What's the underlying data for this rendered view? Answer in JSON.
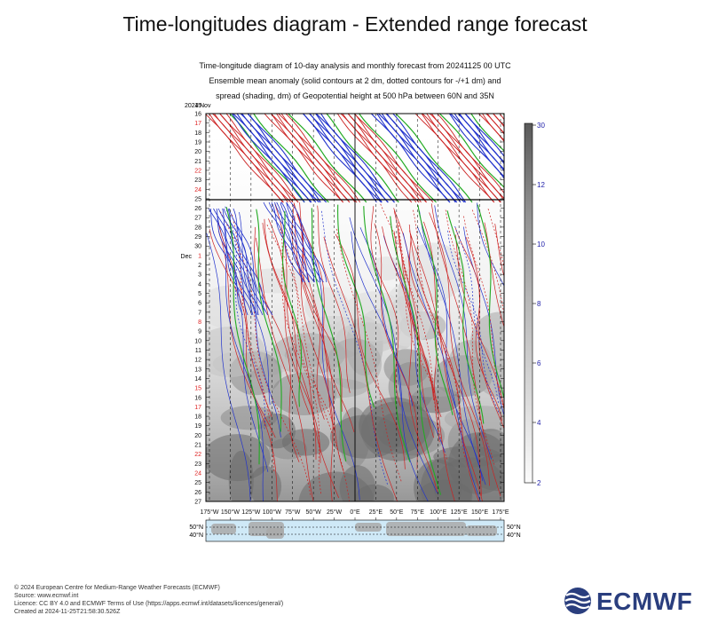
{
  "page": {
    "title": "Time-longitudes diagram - Extended range forecast"
  },
  "chart_data": {
    "type": "heatmap",
    "subtitle_lines": [
      "Time-longitude diagram of 10-day analysis and monthly forecast from 20241125 00 UTC",
      "Ensemble mean anomaly (solid contours at 2 dm, dotted contours for -/+1 dm) and",
      "spread (shading, dm) of Geopotential height at 500 hPa between 60N and 35N"
    ],
    "year_label": "2024",
    "month_labels": [
      "Nov",
      "Dec"
    ],
    "y_days": [
      "15",
      "16",
      "17",
      "18",
      "19",
      "20",
      "21",
      "22",
      "23",
      "24",
      "25",
      "26",
      "27",
      "28",
      "29",
      "30",
      "1",
      "2",
      "3",
      "4",
      "5",
      "6",
      "7",
      "8",
      "9",
      "10",
      "11",
      "12",
      "13",
      "14",
      "15",
      "16",
      "17",
      "18",
      "19",
      "20",
      "21",
      "22",
      "23",
      "24",
      "25",
      "26",
      "27"
    ],
    "weekend_days_red": [
      "17",
      "24",
      "1",
      "8",
      "15",
      "22"
    ],
    "analysis_forecast_split": "2024-11-25",
    "x_ticks": [
      "175°W",
      "150°W",
      "125°W",
      "100°W",
      "75°W",
      "50°W",
      "25°W",
      "0°E",
      "25°E",
      "50°E",
      "75°E",
      "100°E",
      "125°E",
      "150°E",
      "175°E"
    ],
    "colorbar": {
      "ticks": [
        2,
        4,
        6,
        8,
        10,
        12,
        30
      ],
      "range": [
        2,
        30
      ],
      "units": "dm",
      "label_color": "#2222aa"
    },
    "map_lat_labels": [
      "50°N",
      "40°N"
    ],
    "contour_colors": {
      "positive": "#cc2222",
      "negative": "#2233cc",
      "zero": "#22aa22"
    },
    "spread_colors": [
      "#f4f4f4",
      "#dcdcdc",
      "#c4c4c4",
      "#a8a8a8",
      "#8a8a8a",
      "#6c6c6c"
    ]
  },
  "footer": {
    "line1": "© 2024 European Centre for Medium-Range Weather Forecasts (ECMWF)",
    "line2": "Source: www.ecmwf.int",
    "line3": "Licence: CC BY 4.0 and ECMWF Terms of Use (https://apps.ecmwf.int/datasets/licences/general/)",
    "line4": "Created at 2024-11-25T21:58:30.526Z"
  },
  "logo": {
    "text": "ECMWF",
    "color": "#2a3e7e"
  }
}
